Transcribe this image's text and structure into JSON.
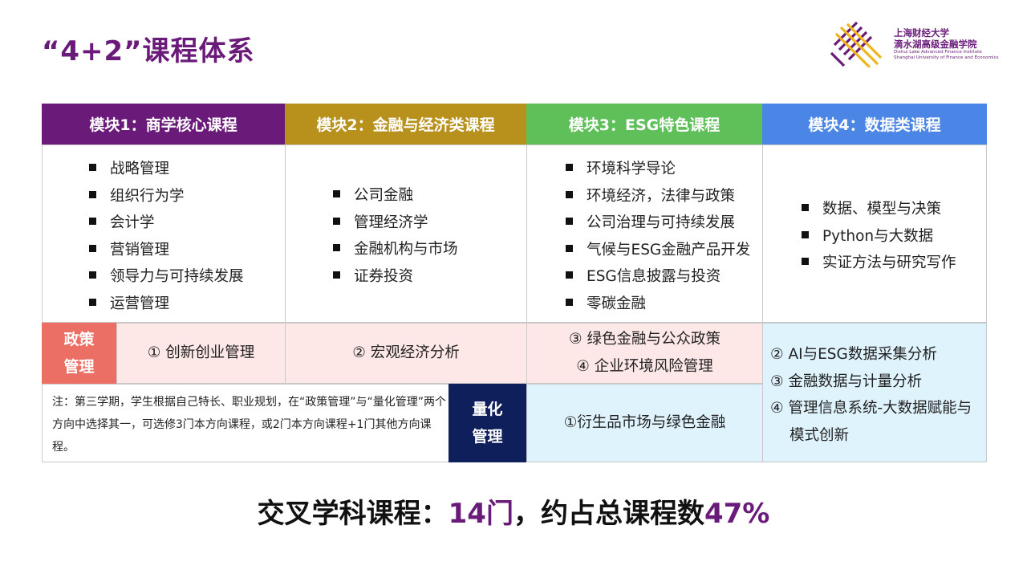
{
  "title": "“4+2”课程体系",
  "logo": {
    "cn_line1": "上海财经大学",
    "cn_line2": "滴水湖高级金融学院",
    "en_line1": "Dishui Lake Advanced Finance Institute",
    "en_line2": "Shanghai University of Finance and Economics"
  },
  "modules": [
    {
      "header": "模块1：商学核心课程",
      "color": "#6a1b7a",
      "items": [
        "战略管理",
        "组织行为学",
        "会计学",
        "营销管理",
        "领导力与可持续发展",
        "运营管理"
      ]
    },
    {
      "header": "模块2：金融与经济类课程",
      "color": "#b8901c",
      "items": [
        "公司金融",
        "管理经济学",
        "金融机构与市场",
        "证券投资"
      ]
    },
    {
      "header": "模块3：ESG特色课程",
      "color": "#5fc05a",
      "items": [
        "环境科学导论",
        "环境经济，法律与政策",
        "公司治理与可持续发展",
        "气候与ESG金融产品开发",
        "ESG信息披露与投资",
        "零碳金融"
      ]
    },
    {
      "header": "模块4：数据类课程",
      "color": "#4b86e6",
      "items": [
        "数据、模型与决策",
        "Python与大数据",
        "实证方法与研究写作"
      ]
    }
  ],
  "policy": {
    "label_line1": "政策",
    "label_line2": "管理",
    "col1": "① 创新创业管理",
    "col2": "② 宏观经济分析",
    "col3_line1": "③  绿色金融与公众政策",
    "col3_line2": "④  企业环境风险管理"
  },
  "data_electives": [
    "② AI与ESG数据采集分析",
    "③ 金融数据与计量分析",
    "④ 管理信息系统-大数据赋能与",
    "模式创新"
  ],
  "note": "注：第三学期，学生根据自己特长、职业规划，在“政策管理”与“量化管理”两个方向中选择其一，可选修3门本方向课程，或2门本方向课程+1门其他方向课程。",
  "quant": {
    "label_line1": "量化",
    "label_line2": "管理",
    "course": "①衍生品市场与绿色金融"
  },
  "summary": {
    "prefix": "交叉学科课程：",
    "count": "14门",
    "middle": "，约占总课程数",
    "percent": "47%"
  }
}
